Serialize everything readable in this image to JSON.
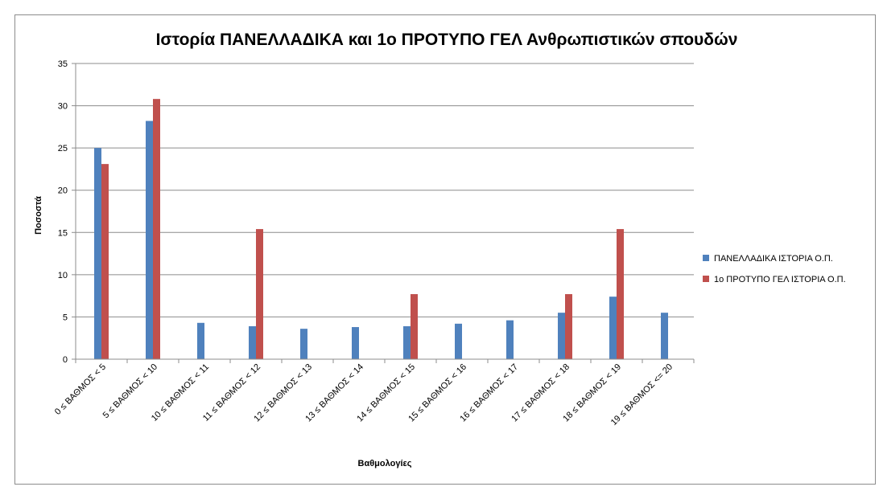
{
  "chart_data": {
    "type": "bar",
    "title": "Ιστορία ΠΑΝΕΛΛΑΔΙΚΑ και 1ο ΠΡΟΤΥΠΟ ΓΕΛ Ανθρωπιστικών σπουδών",
    "xlabel": "Βαθμολογίες",
    "ylabel": "Ποσοστά",
    "ylim": [
      0,
      35
    ],
    "yticks": [
      0,
      5,
      10,
      15,
      20,
      25,
      30,
      35
    ],
    "grid": true,
    "legend_position": "right",
    "categories": [
      "0 ≤ ΒΑΘΜΟΣ < 5",
      "5 ≤ ΒΑΘΜΟΣ < 10",
      "10 ≤ ΒΑΘΜΟΣ < 11",
      "11 ≤ ΒΑΘΜΟΣ < 12",
      "12 ≤ ΒΑΘΜΟΣ < 13",
      "13 ≤ ΒΑΘΜΟΣ < 14",
      "14 ≤ ΒΑΘΜΟΣ < 15",
      "15 ≤ ΒΑΘΜΟΣ < 16",
      "16 ≤ ΒΑΘΜΟΣ < 17",
      "17 ≤ ΒΑΘΜΟΣ < 18",
      "18 ≤ ΒΑΘΜΟΣ < 19",
      "19 ≤ ΒΑΘΜΟΣ <= 20"
    ],
    "series": [
      {
        "name": "ΠΑΝΕΛΛΑΔΙΚΑ ΙΣΤΟΡΙΑ Ο.Π.",
        "color": "#4F81BD",
        "values": [
          25.0,
          28.2,
          4.3,
          3.9,
          3.6,
          3.8,
          3.9,
          4.2,
          4.6,
          5.5,
          7.4,
          5.5
        ]
      },
      {
        "name": "1ο ΠΡΟΤΥΠΟ ΓΕΛ ΙΣΤΟΡΙΑ Ο.Π.",
        "color": "#C0504D",
        "values": [
          23.1,
          30.8,
          0,
          15.4,
          0,
          0,
          7.7,
          0,
          0,
          7.7,
          15.4,
          0
        ]
      }
    ]
  }
}
